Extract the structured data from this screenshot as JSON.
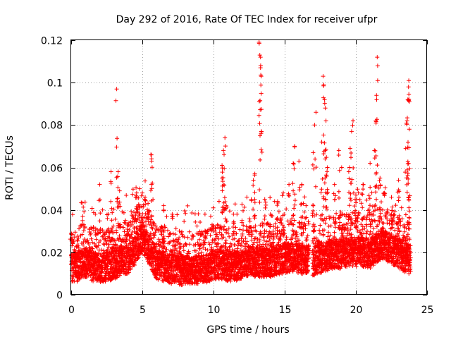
{
  "chart_data": {
    "type": "scatter",
    "title": "Day 292 of 2016, Rate Of TEC Index for receiver ufpr",
    "xlabel": "GPS time / hours",
    "ylabel": "ROTI / TECUs",
    "xlim": [
      0,
      25
    ],
    "ylim": [
      0,
      0.12
    ],
    "xticks": [
      0,
      5,
      10,
      15,
      20,
      25
    ],
    "xtick_labels": [
      "0",
      "5",
      "10",
      "15",
      "20",
      "25"
    ],
    "yticks": [
      0,
      0.02,
      0.04,
      0.06,
      0.08,
      0.1,
      0.12
    ],
    "ytick_labels": [
      "0",
      "0.02",
      "0.04",
      "0.06",
      "0.08",
      "0.1",
      "0.12"
    ],
    "grid": true,
    "marker": "plus",
    "color": "#ff0000",
    "series": [
      {
        "name": "ROTI",
        "baseline": [
          [
            0.0,
            0.013
          ],
          [
            0.5,
            0.014
          ],
          [
            1.0,
            0.016
          ],
          [
            1.5,
            0.014
          ],
          [
            2.0,
            0.013
          ],
          [
            2.5,
            0.014
          ],
          [
            3.0,
            0.015
          ],
          [
            3.5,
            0.017
          ],
          [
            4.0,
            0.017
          ],
          [
            4.5,
            0.022
          ],
          [
            5.0,
            0.028
          ],
          [
            5.5,
            0.022
          ],
          [
            6.0,
            0.015
          ],
          [
            6.5,
            0.014
          ],
          [
            7.0,
            0.013
          ],
          [
            7.5,
            0.012
          ],
          [
            8.0,
            0.012
          ],
          [
            8.5,
            0.012
          ],
          [
            9.0,
            0.012
          ],
          [
            9.5,
            0.013
          ],
          [
            10.0,
            0.015
          ],
          [
            10.5,
            0.015
          ],
          [
            11.0,
            0.014
          ],
          [
            11.5,
            0.014
          ],
          [
            12.0,
            0.015
          ],
          [
            12.5,
            0.017
          ],
          [
            13.0,
            0.016
          ],
          [
            13.5,
            0.016
          ],
          [
            14.0,
            0.016
          ],
          [
            14.5,
            0.017
          ],
          [
            15.0,
            0.018
          ],
          [
            15.5,
            0.018
          ],
          [
            16.0,
            0.018
          ],
          [
            16.5,
            0.017
          ],
          [
            17.0,
            0.016
          ],
          [
            17.5,
            0.018
          ],
          [
            18.0,
            0.019
          ],
          [
            18.5,
            0.02
          ],
          [
            19.0,
            0.02
          ],
          [
            19.5,
            0.021
          ],
          [
            20.0,
            0.021
          ],
          [
            20.5,
            0.021
          ],
          [
            21.0,
            0.02
          ],
          [
            21.5,
            0.023
          ],
          [
            22.0,
            0.024
          ],
          [
            22.5,
            0.022
          ],
          [
            23.0,
            0.02
          ],
          [
            23.5,
            0.018
          ],
          [
            23.8,
            0.017
          ]
        ],
        "gaps": [
          [
            16.7,
            16.95
          ]
        ],
        "peaks": [
          [
            0.0,
            0.029
          ],
          [
            1.3,
            0.031
          ],
          [
            1.7,
            0.038
          ],
          [
            2.0,
            0.052
          ],
          [
            2.6,
            0.038
          ],
          [
            2.8,
            0.058
          ],
          [
            3.2,
            0.097
          ],
          [
            3.3,
            0.058
          ],
          [
            3.4,
            0.049
          ],
          [
            4.6,
            0.048
          ],
          [
            4.8,
            0.05
          ],
          [
            5.0,
            0.048
          ],
          [
            5.2,
            0.046
          ],
          [
            5.4,
            0.043
          ],
          [
            5.6,
            0.066
          ],
          [
            5.65,
            0.063
          ],
          [
            6.5,
            0.042
          ],
          [
            7.1,
            0.038
          ],
          [
            7.6,
            0.03
          ],
          [
            9.4,
            0.038
          ],
          [
            9.9,
            0.033
          ],
          [
            10.6,
            0.055
          ],
          [
            10.8,
            0.074
          ],
          [
            10.7,
            0.068
          ],
          [
            10.6,
            0.061
          ],
          [
            10.9,
            0.042
          ],
          [
            11.4,
            0.038
          ],
          [
            12.0,
            0.035
          ],
          [
            12.5,
            0.032
          ],
          [
            12.8,
            0.054
          ],
          [
            12.9,
            0.057
          ],
          [
            13.2,
            0.119
          ],
          [
            13.25,
            0.113
          ],
          [
            13.3,
            0.112
          ],
          [
            13.3,
            0.107
          ],
          [
            13.35,
            0.103
          ],
          [
            13.6,
            0.045
          ],
          [
            14.0,
            0.038
          ],
          [
            14.5,
            0.044
          ],
          [
            14.9,
            0.048
          ],
          [
            15.3,
            0.052
          ],
          [
            15.6,
            0.062
          ],
          [
            15.7,
            0.07
          ],
          [
            16.0,
            0.063
          ],
          [
            16.2,
            0.052
          ],
          [
            16.5,
            0.042
          ],
          [
            17.0,
            0.067
          ],
          [
            17.1,
            0.08
          ],
          [
            17.2,
            0.086
          ],
          [
            17.6,
            0.072
          ],
          [
            17.7,
            0.103
          ],
          [
            17.75,
            0.099
          ],
          [
            17.8,
            0.092
          ],
          [
            17.85,
            0.088
          ],
          [
            17.9,
            0.082
          ],
          [
            18.0,
            0.06
          ],
          [
            18.5,
            0.052
          ],
          [
            18.8,
            0.068
          ],
          [
            19.0,
            0.06
          ],
          [
            19.5,
            0.058
          ],
          [
            19.6,
            0.069
          ],
          [
            19.7,
            0.077
          ],
          [
            19.8,
            0.082
          ],
          [
            20.0,
            0.047
          ],
          [
            20.5,
            0.052
          ],
          [
            21.0,
            0.062
          ],
          [
            21.3,
            0.068
          ],
          [
            21.4,
            0.082
          ],
          [
            21.45,
            0.094
          ],
          [
            21.5,
            0.112
          ],
          [
            21.7,
            0.055
          ],
          [
            22.0,
            0.048
          ],
          [
            22.5,
            0.046
          ],
          [
            23.0,
            0.054
          ],
          [
            23.5,
            0.069
          ],
          [
            23.6,
            0.082
          ],
          [
            23.65,
            0.092
          ],
          [
            23.7,
            0.098
          ],
          [
            23.72,
            0.101
          ],
          [
            23.75,
            0.078
          ],
          [
            23.7,
            0.046
          ]
        ]
      }
    ]
  }
}
